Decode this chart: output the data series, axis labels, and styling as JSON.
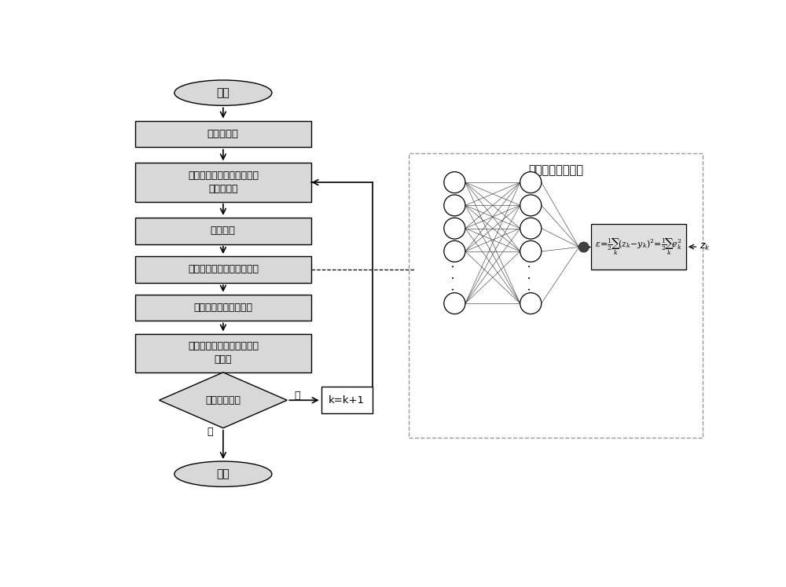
{
  "flowchart": {
    "start_label": "开始",
    "end_label": "结束",
    "boxes": [
      "初始化采样",
      "计算重要性权值、粒子按权\n值降序排列",
      "权值分裂",
      "粒子调整、计算重要性权值",
      "权值归一化、状态估计",
      "计算有效粒子数、判断是否\n重采样"
    ],
    "diamond_label": "仿真是否结束",
    "diamond_no": "否",
    "diamond_yes": "是",
    "kk1_label": "k=k+1"
  },
  "nn": {
    "title": "神经网络调整粒子",
    "zk_label": "z_k"
  },
  "colors": {
    "box_fill": "#d8d8d8",
    "box_edge": "#000000",
    "nn_border": "#aaaaaa",
    "formula_fill": "#e0e0e0",
    "node_fill": "#ffffff",
    "node_edge": "#000000"
  }
}
